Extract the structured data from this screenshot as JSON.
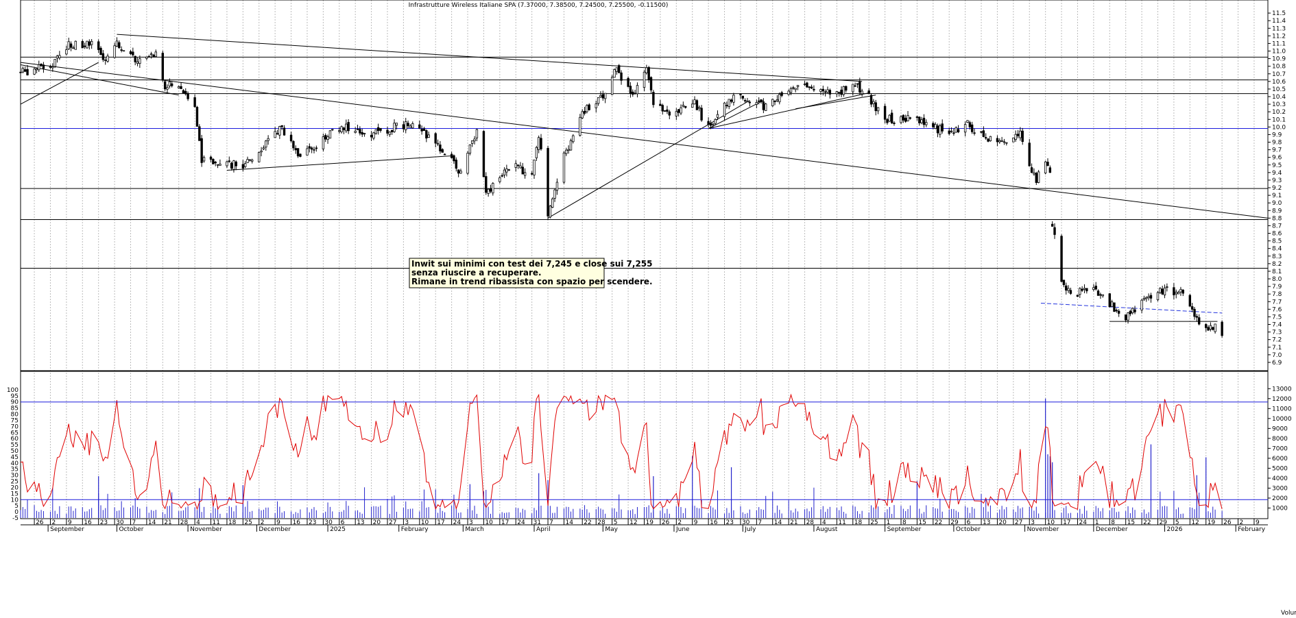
{
  "chart_data": [
    {
      "type": "candlestick",
      "title": "Infrastrutture Wireless Italiane SPA (7.37000, 7.38500, 7.24500, 7.25500, -0.11500)",
      "ylim": [
        6.8,
        11.6
      ],
      "yticks": [
        "6.9",
        "7.0",
        "7.1",
        "7.2",
        "7.3",
        "7.4",
        "7.5",
        "7.6",
        "7.7",
        "7.8",
        "7.9",
        "8.0",
        "8.1",
        "8.2",
        "8.3",
        "8.4",
        "8.5",
        "8.6",
        "8.7",
        "8.8",
        "8.9",
        "9.0",
        "9.1",
        "9.2",
        "9.3",
        "9.4",
        "9.5",
        "9.6",
        "9.7",
        "9.8",
        "9.9",
        "10.0",
        "10.1",
        "10.2",
        "10.3",
        "10.4",
        "10.5",
        "10.6",
        "10.7",
        "10.8",
        "10.9",
        "11.0",
        "11.1",
        "11.2",
        "11.3",
        "11.4",
        "11.5"
      ],
      "horizontal_levels": [
        10.92,
        10.62,
        10.44,
        9.98,
        9.19,
        8.78,
        8.14
      ],
      "trendlines": [
        {
          "from": [
            "2024-08-20",
            10.3
          ],
          "to": [
            "2024-09-23",
            10.85
          ]
        },
        {
          "from": [
            "2024-08-20",
            10.82
          ],
          "to": [
            "2024-10-28",
            10.42
          ]
        },
        {
          "from": [
            "2024-10-01",
            11.22
          ],
          "to": [
            "2025-08-22",
            10.6
          ]
        },
        {
          "from": [
            "2024-08-20",
            10.85
          ],
          "to": [
            "2026-02-15",
            8.8
          ]
        },
        {
          "from": [
            "2024-11-18",
            9.43
          ],
          "to": [
            "2025-02-24",
            9.62
          ]
        },
        {
          "from": [
            "2025-04-07",
            8.8
          ],
          "to": [
            "2025-07-04",
            10.35
          ]
        },
        {
          "from": [
            "2025-06-16",
            9.98
          ],
          "to": [
            "2025-08-25",
            10.45
          ]
        },
        {
          "from": [
            "2025-06-16",
            9.98
          ],
          "to": [
            "2025-07-10",
            10.35
          ]
        },
        {
          "from": [
            "2025-07-24",
            10.24
          ],
          "to": [
            "2025-08-28",
            10.42
          ]
        },
        {
          "from": [
            "2025-11-08",
            7.68
          ],
          "to": [
            "2026-01-26",
            7.55
          ],
          "style": "dashed-blue"
        },
        {
          "from": [
            "2025-12-08",
            7.44
          ],
          "to": [
            "2026-01-24",
            7.44
          ]
        }
      ],
      "annotation": [
        "Inwit sui minimi con test dei 7,245 e close sui 7,255",
        "senza riuscire a recuperare.",
        "Rimane in trend ribassista con spazio per scendere."
      ],
      "price_path": [
        [
          "2024-08-20",
          10.72
        ],
        [
          "2024-09-02",
          10.8
        ],
        [
          "2024-09-10",
          11.1
        ],
        [
          "2024-09-20",
          11.08
        ],
        [
          "2024-09-25",
          10.9
        ],
        [
          "2024-10-01",
          11.12
        ],
        [
          "2024-10-10",
          10.88
        ],
        [
          "2024-10-18",
          10.95
        ],
        [
          "2024-10-22",
          10.55
        ],
        [
          "2024-10-29",
          10.5
        ],
        [
          "2024-11-04",
          10.3
        ],
        [
          "2024-11-07",
          9.58
        ],
        [
          "2024-11-15",
          9.55
        ],
        [
          "2024-11-25",
          9.48
        ],
        [
          "2024-12-05",
          9.8
        ],
        [
          "2024-12-12",
          10.0
        ],
        [
          "2024-12-20",
          9.62
        ],
        [
          "2025-01-08",
          10.02
        ],
        [
          "2025-01-20",
          9.92
        ],
        [
          "2025-02-05",
          10.05
        ],
        [
          "2025-02-18",
          9.78
        ],
        [
          "2025-02-28",
          9.4
        ],
        [
          "2025-03-07",
          9.95
        ],
        [
          "2025-03-11",
          9.12
        ],
        [
          "2025-03-20",
          9.5
        ],
        [
          "2025-03-31",
          9.4
        ],
        [
          "2025-04-03",
          9.92
        ],
        [
          "2025-04-07",
          8.85
        ],
        [
          "2025-04-14",
          9.6
        ],
        [
          "2025-04-22",
          10.2
        ],
        [
          "2025-05-02",
          10.45
        ],
        [
          "2025-05-06",
          10.78
        ],
        [
          "2025-05-14",
          10.38
        ],
        [
          "2025-05-20",
          10.75
        ],
        [
          "2025-05-23",
          10.28
        ],
        [
          "2025-06-02",
          10.15
        ],
        [
          "2025-06-09",
          10.35
        ],
        [
          "2025-06-16",
          10.0
        ],
        [
          "2025-06-23",
          10.32
        ],
        [
          "2025-07-01",
          10.4
        ],
        [
          "2025-07-10",
          10.28
        ],
        [
          "2025-07-22",
          10.55
        ],
        [
          "2025-08-05",
          10.45
        ],
        [
          "2025-08-22",
          10.52
        ],
        [
          "2025-09-01",
          10.1
        ],
        [
          "2025-09-15",
          10.1
        ],
        [
          "2025-09-29",
          9.9
        ],
        [
          "2025-10-06",
          10.05
        ],
        [
          "2025-10-15",
          9.85
        ],
        [
          "2025-10-24",
          9.75
        ],
        [
          "2025-10-30",
          9.95
        ],
        [
          "2025-11-03",
          9.45
        ],
        [
          "2025-11-06",
          9.3
        ],
        [
          "2025-11-10",
          9.5
        ],
        [
          "2025-11-12",
          9.45
        ],
        [
          "2025-11-13",
          8.72
        ],
        [
          "2025-11-17",
          7.95
        ],
        [
          "2025-11-21",
          7.8
        ],
        [
          "2025-12-01",
          7.88
        ],
        [
          "2025-12-10",
          7.62
        ],
        [
          "2025-12-15",
          7.5
        ],
        [
          "2025-12-22",
          7.68
        ],
        [
          "2025-12-29",
          7.85
        ],
        [
          "2026-01-08",
          7.82
        ],
        [
          "2026-01-12",
          7.6
        ],
        [
          "2026-01-16",
          7.45
        ],
        [
          "2026-01-20",
          7.38
        ],
        [
          "2026-01-23",
          7.37
        ],
        [
          "2026-01-26",
          7.255
        ]
      ],
      "x_day_labels": [
        [
          "2024-08-26",
          "26"
        ],
        [
          "2024-09-02",
          "2"
        ],
        [
          "2024-09-09",
          "9"
        ],
        [
          "2024-09-16",
          "16"
        ],
        [
          "2024-09-23",
          "23"
        ],
        [
          "2024-09-30",
          "30"
        ],
        [
          "2024-10-07",
          "7"
        ],
        [
          "2024-10-14",
          "14"
        ],
        [
          "2024-10-21",
          "21"
        ],
        [
          "2024-10-28",
          "28"
        ],
        [
          "2024-11-04",
          "4"
        ],
        [
          "2024-11-11",
          "11"
        ],
        [
          "2024-11-18",
          "18"
        ],
        [
          "2024-11-25",
          "25"
        ],
        [
          "2024-12-02",
          "2"
        ],
        [
          "2024-12-09",
          "9"
        ],
        [
          "2024-12-16",
          "16"
        ],
        [
          "2024-12-23",
          "23"
        ],
        [
          "2024-12-30",
          "30"
        ],
        [
          "2025-01-06",
          "6"
        ],
        [
          "2025-01-13",
          "13"
        ],
        [
          "2025-01-20",
          "20"
        ],
        [
          "2025-01-27",
          "27"
        ],
        [
          "2025-02-03",
          "3"
        ],
        [
          "2025-02-10",
          "10"
        ],
        [
          "2025-02-17",
          "17"
        ],
        [
          "2025-02-24",
          "24"
        ],
        [
          "2025-03-03",
          "3"
        ],
        [
          "2025-03-10",
          "10"
        ],
        [
          "2025-03-17",
          "17"
        ],
        [
          "2025-03-24",
          "24"
        ],
        [
          "2025-03-31",
          "31"
        ],
        [
          "2025-04-07",
          "7"
        ],
        [
          "2025-04-14",
          "14"
        ],
        [
          "2025-04-22",
          "22"
        ],
        [
          "2025-04-28",
          "28"
        ],
        [
          "2025-05-05",
          "5"
        ],
        [
          "2025-05-12",
          "12"
        ],
        [
          "2025-05-19",
          "19"
        ],
        [
          "2025-05-26",
          "26"
        ],
        [
          "2025-06-02",
          "2"
        ],
        [
          "2025-06-09",
          "9"
        ],
        [
          "2025-06-16",
          "16"
        ],
        [
          "2025-06-23",
          "23"
        ],
        [
          "2025-06-30",
          "30"
        ],
        [
          "2025-07-07",
          "7"
        ],
        [
          "2025-07-14",
          "14"
        ],
        [
          "2025-07-21",
          "21"
        ],
        [
          "2025-07-28",
          "28"
        ],
        [
          "2025-08-04",
          "4"
        ],
        [
          "2025-08-11",
          "11"
        ],
        [
          "2025-08-18",
          "18"
        ],
        [
          "2025-08-25",
          "25"
        ],
        [
          "2025-09-01",
          "1"
        ],
        [
          "2025-09-08",
          "8"
        ],
        [
          "2025-09-15",
          "15"
        ],
        [
          "2025-09-22",
          "22"
        ],
        [
          "2025-09-29",
          "29"
        ],
        [
          "2025-10-06",
          "6"
        ],
        [
          "2025-10-13",
          "13"
        ],
        [
          "2025-10-20",
          "20"
        ],
        [
          "2025-10-27",
          "27"
        ],
        [
          "2025-11-03",
          "3"
        ],
        [
          "2025-11-10",
          "10"
        ],
        [
          "2025-11-17",
          "17"
        ],
        [
          "2025-11-24",
          "24"
        ],
        [
          "2025-12-01",
          "1"
        ],
        [
          "2025-12-08",
          "8"
        ],
        [
          "2025-12-15",
          "15"
        ],
        [
          "2025-12-22",
          "22"
        ],
        [
          "2025-12-29",
          "29"
        ],
        [
          "2026-01-05",
          "5"
        ],
        [
          "2026-01-12",
          "12"
        ],
        [
          "2026-01-19",
          "19"
        ],
        [
          "2026-01-26",
          "26"
        ],
        [
          "2026-02-02",
          "2"
        ],
        [
          "2026-02-09",
          "9"
        ]
      ],
      "x_month_labels": [
        [
          "2024-09-01",
          "September"
        ],
        [
          "2024-10-01",
          "October"
        ],
        [
          "2024-11-01",
          "November"
        ],
        [
          "2024-12-01",
          "December"
        ],
        [
          "2025-01-01",
          "2025"
        ],
        [
          "2025-02-01",
          "February"
        ],
        [
          "2025-03-01",
          "March"
        ],
        [
          "2025-04-01",
          "April"
        ],
        [
          "2025-05-01",
          "May"
        ],
        [
          "2025-06-01",
          "June"
        ],
        [
          "2025-07-01",
          "July"
        ],
        [
          "2025-08-01",
          "August"
        ],
        [
          "2025-09-01",
          "September"
        ],
        [
          "2025-10-01",
          "October"
        ],
        [
          "2025-11-01",
          "November"
        ],
        [
          "2025-12-01",
          "December"
        ],
        [
          "2026-01-01",
          "2026"
        ],
        [
          "2026-02-01",
          "February"
        ]
      ]
    },
    {
      "type": "line-and-bar",
      "oscillator_ylim": [
        -5,
        105
      ],
      "oscillator_yticks": [
        "-5",
        "0",
        "5",
        "10",
        "15",
        "20",
        "25",
        "30",
        "35",
        "40",
        "45",
        "50",
        "55",
        "60",
        "65",
        "70",
        "75",
        "80",
        "85",
        "90",
        "95",
        "100"
      ],
      "oscillator_levels": [
        90,
        10
      ],
      "volume_ylim": [
        0,
        13500
      ],
      "volume_yticks": [
        "1000",
        "2000",
        "3000",
        "4000",
        "5000",
        "6000",
        "7000",
        "8000",
        "9000",
        "10000",
        "11000",
        "12000",
        "13000"
      ],
      "volume_label": "Volume",
      "volume_spikes": [
        [
          "2024-09-23",
          4200
        ],
        [
          "2024-11-06",
          3000
        ],
        [
          "2024-11-25",
          3300
        ],
        [
          "2025-03-04",
          3400
        ],
        [
          "2025-04-03",
          4500
        ],
        [
          "2025-04-07",
          3800
        ],
        [
          "2025-05-23",
          4200
        ],
        [
          "2025-06-09",
          6200
        ],
        [
          "2025-06-26",
          5100
        ],
        [
          "2025-09-15",
          3700
        ],
        [
          "2025-11-10",
          12000
        ],
        [
          "2025-11-11",
          6400
        ],
        [
          "2025-11-12",
          6200
        ],
        [
          "2025-11-13",
          5600
        ],
        [
          "2025-12-26",
          7400
        ],
        [
          "2026-01-15",
          4300
        ],
        [
          "2026-01-19",
          6100
        ]
      ]
    }
  ]
}
